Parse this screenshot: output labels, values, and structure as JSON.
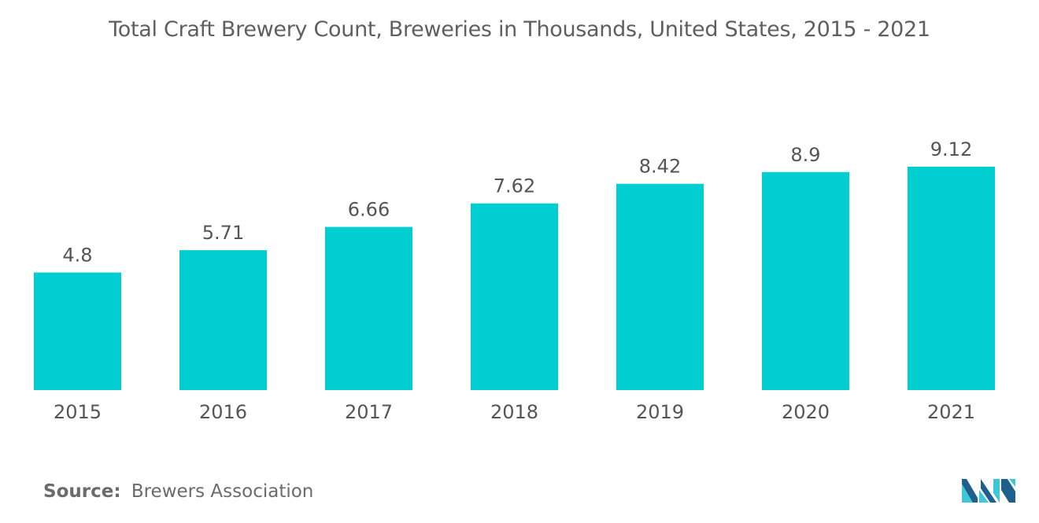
{
  "colors": {
    "bar": "#00CED1",
    "text": "#555555",
    "title": "#5f5f5f",
    "logo_dark": "#1f5f8b",
    "logo_light": "#3ec7d4"
  },
  "footer": {
    "source_label": "Source:",
    "source_text": "Brewers Association"
  },
  "logo": {
    "icon": "mordor-intelligence-logo-icon"
  },
  "chart_data": {
    "type": "bar",
    "title": "Total Craft Brewery Count, Breweries in Thousands, United States, 2015 - 2021",
    "categories": [
      "2015",
      "2016",
      "2017",
      "2018",
      "2019",
      "2020",
      "2021"
    ],
    "values": [
      4.8,
      5.71,
      6.66,
      7.62,
      8.42,
      8.9,
      9.12
    ],
    "data_labels": [
      "4.8",
      "5.71",
      "6.66",
      "7.62",
      "8.42",
      "8.9",
      "9.12"
    ],
    "xlabel": "",
    "ylabel": "",
    "ylim": [
      0,
      10
    ],
    "grid": false,
    "legend": "none"
  }
}
